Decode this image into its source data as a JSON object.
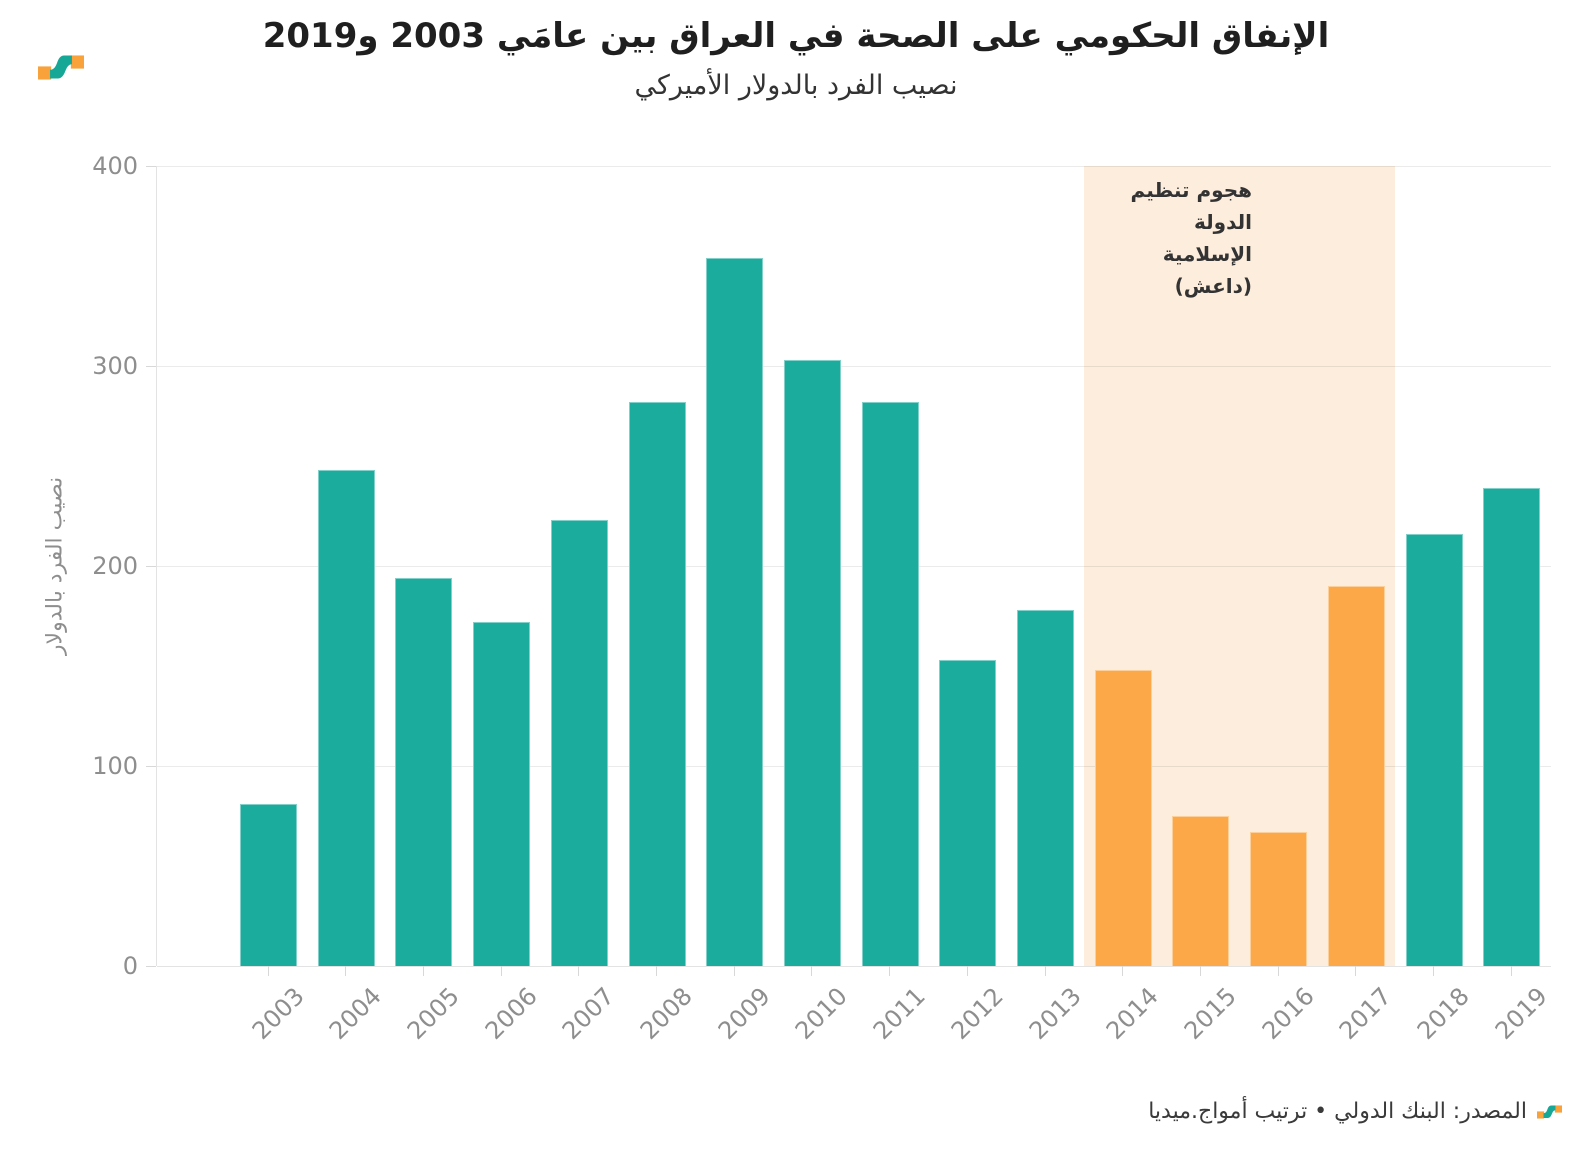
{
  "chart_data": {
    "type": "bar",
    "title": "الإنفاق الحكومي على الصحة في العراق بين عامَي 2003 و2019",
    "subtitle": "نصيب الفرد بالدولار الأميركي",
    "categories": [
      "2003",
      "2004",
      "2005",
      "2006",
      "2007",
      "2008",
      "2009",
      "2010",
      "2011",
      "2012",
      "2013",
      "2014",
      "2015",
      "2016",
      "2017",
      "2018",
      "2019"
    ],
    "values": [
      81,
      248,
      194,
      172,
      223,
      282,
      354,
      303,
      282,
      153,
      178,
      148,
      75,
      67,
      190,
      216,
      239
    ],
    "ylabel": "نصيب الفرد بالدولار",
    "ylim": [
      0,
      400
    ],
    "yticks": [
      0,
      100,
      200,
      300,
      400
    ],
    "grid": true,
    "legend": "none",
    "highlight_years": [
      "2014",
      "2015",
      "2016",
      "2017"
    ],
    "annotation": {
      "line1": "هجوم تنظيم الدولة",
      "line2": "الإسلامية (داعش)"
    },
    "colors": {
      "bar": "#1BAC9E",
      "bar_highlight": "#FCA849",
      "band": "#FCEDDC",
      "grid": "#E9E9E9",
      "axis_text": "#8E8E8E"
    }
  },
  "footer": {
    "source": "المصدر: البنك الدولي • ترتيب أمواج.ميديا"
  },
  "logo": {
    "orange": "#F9A13B",
    "teal": "#16A796"
  }
}
